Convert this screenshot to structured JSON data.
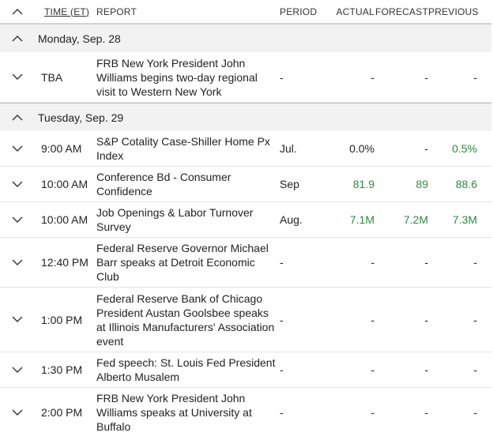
{
  "header": {
    "time": "TIME (ET)",
    "report": "REPORT",
    "period": "PERIOD",
    "actual": "ACTUAL",
    "forecast": "FORECAST",
    "previous": "PREVIOUS"
  },
  "days": [
    {
      "label": "Monday, Sep. 28",
      "events": [
        {
          "time": "TBA",
          "report": "FRB New York President John Williams begins two-day regional visit to Western New York",
          "period": "-",
          "actual": "-",
          "forecast": "-",
          "previous": "-"
        }
      ]
    },
    {
      "label": "Tuesday, Sep. 29",
      "events": [
        {
          "time": "9:00 AM",
          "report": "S&P Cotality Case-Shiller Home Px Index",
          "period": "Jul.",
          "actual": "0.0%",
          "forecast": "-",
          "previous": "0.5%"
        },
        {
          "time": "10:00 AM",
          "report": "Conference Bd - Consumer Confidence",
          "period": "Sep",
          "actual": "81.9",
          "forecast": "89",
          "previous": "88.6"
        },
        {
          "time": "10:00 AM",
          "report": "Job Openings & Labor Turnover Survey",
          "period": "Aug.",
          "actual": "7.1M",
          "forecast": "7.2M",
          "previous": "7.3M"
        },
        {
          "time": "12:40 PM",
          "report": "Federal Reserve Governor Michael Barr speaks at Detroit Economic Club",
          "period": "-",
          "actual": "-",
          "forecast": "-",
          "previous": "-"
        },
        {
          "time": "1:00 PM",
          "report": "Federal Reserve Bank of Chicago President Austan Goolsbee speaks at Illinois Manufacturers' Association event",
          "period": "-",
          "actual": "-",
          "forecast": "-",
          "previous": "-"
        },
        {
          "time": "1:30 PM",
          "report": "Fed speech: St. Louis Fed President Alberto Musalem",
          "period": "-",
          "actual": "-",
          "forecast": "-",
          "previous": "-"
        },
        {
          "time": "2:00 PM",
          "report": "FRB New York President John Williams speaks at University at Buffalo",
          "period": "-",
          "actual": "-",
          "forecast": "-",
          "previous": "-"
        }
      ]
    }
  ],
  "colors": {
    "positive": "#2e8b3d",
    "day_bg": "#f2f2f2"
  },
  "icons": {
    "collapse": "chevron-up-icon",
    "expand": "chevron-down-icon"
  }
}
